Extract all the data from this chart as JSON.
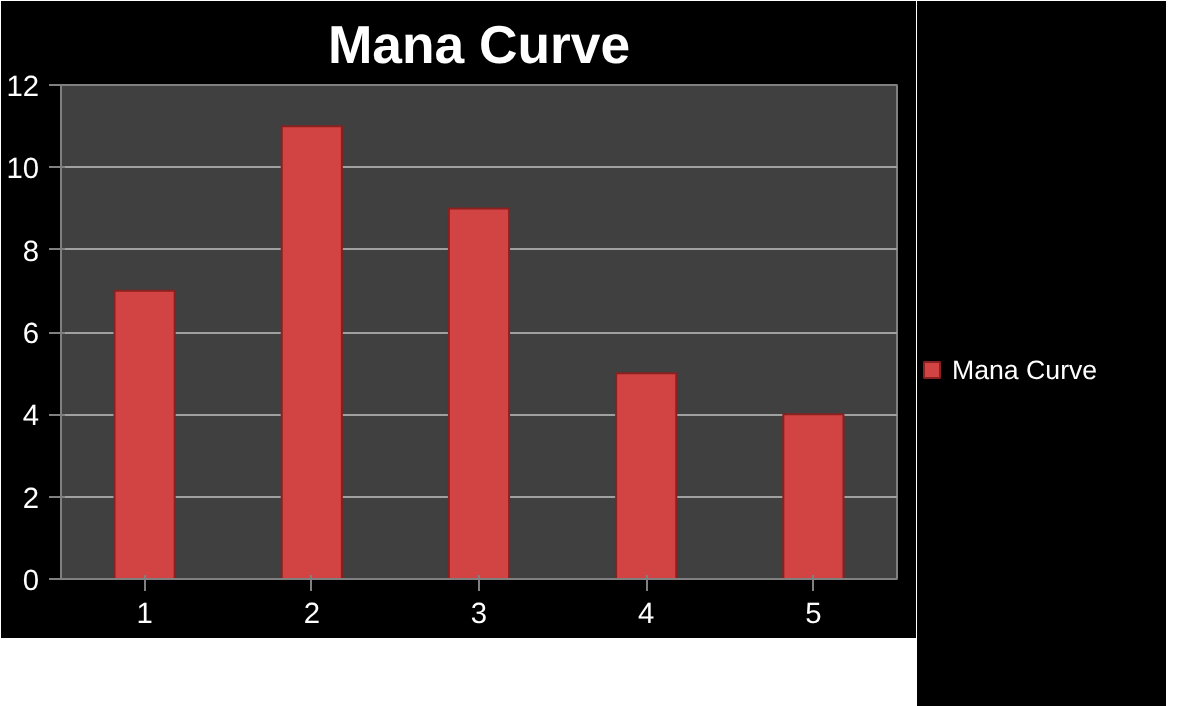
{
  "chart_data": {
    "type": "bar",
    "title": "Mana Curve",
    "categories": [
      "1",
      "2",
      "3",
      "4",
      "5"
    ],
    "series": [
      {
        "name": "Mana Curve",
        "color": "#d24343",
        "values": [
          7,
          11,
          9,
          5,
          4
        ]
      }
    ],
    "ylim": [
      0,
      12
    ],
    "yticks": [
      0,
      2,
      4,
      6,
      8,
      10,
      12
    ],
    "grid": "y",
    "legend": "right"
  }
}
